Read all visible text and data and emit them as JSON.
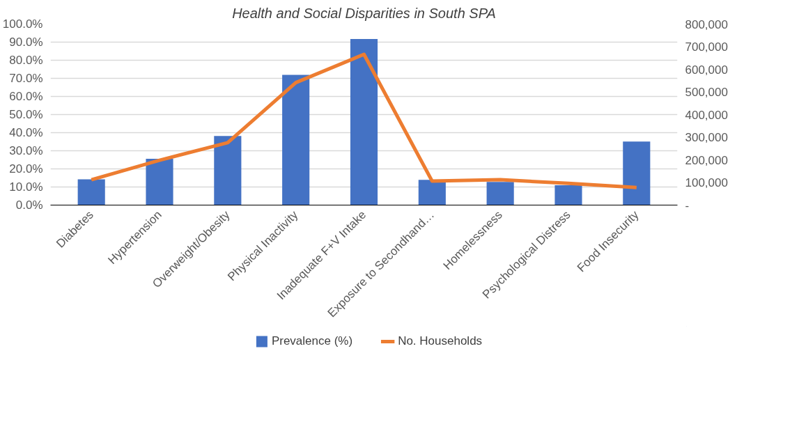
{
  "chart_data": {
    "type": "bar",
    "title": "Health and Social Disparities in South SPA",
    "categories": [
      "Diabetes",
      "Hypertension",
      "Overweight/Obesity",
      "Physical Inactivity",
      "Inadequate F+V Intake",
      "Exposure to Secondhand…",
      "Homelessness",
      "Psychological Distress",
      "Food Insecurity"
    ],
    "series": [
      {
        "name": "Prevalence (%)",
        "color": "#4472c4",
        "values": [
          14.2,
          25.6,
          38.2,
          71.9,
          91.7,
          13.9,
          12.8,
          11.0,
          35.1
        ]
      },
      {
        "name": "No. Households",
        "type": "line",
        "axis": "y2",
        "color": "#ed7d31",
        "values": [
          112000,
          198000,
          276000,
          541000,
          666000,
          106000,
          112000,
          96000,
          78000
        ]
      }
    ],
    "ylim": [
      0,
      100
    ],
    "yticks": [
      {
        "value": 0,
        "label": "0.0%"
      },
      {
        "value": 10,
        "label": "10.0%"
      },
      {
        "value": 20,
        "label": "20.0%"
      },
      {
        "value": 30,
        "label": "30.0%"
      },
      {
        "value": 40,
        "label": "40.0%"
      },
      {
        "value": 50,
        "label": "50.0%"
      },
      {
        "value": 60,
        "label": "60.0%"
      },
      {
        "value": 70,
        "label": "70.0%"
      },
      {
        "value": 80,
        "label": "80.0%"
      },
      {
        "value": 90,
        "label": "90.0%"
      },
      {
        "value": 100,
        "label": "100.0%"
      }
    ],
    "y2lim": [
      0,
      800000
    ],
    "y2ticks": [
      {
        "value": 0,
        "label": "-"
      },
      {
        "value": 100000,
        "label": "100,000"
      },
      {
        "value": 200000,
        "label": "200,000"
      },
      {
        "value": 300000,
        "label": "300,000"
      },
      {
        "value": 400000,
        "label": "400,000"
      },
      {
        "value": 500000,
        "label": "500,000"
      },
      {
        "value": 600000,
        "label": "600,000"
      },
      {
        "value": 700000,
        "label": "700,000"
      },
      {
        "value": 800000,
        "label": "800,000"
      }
    ],
    "grid": "y",
    "legend": "bottom",
    "line_style": "solid",
    "marker": "none"
  }
}
